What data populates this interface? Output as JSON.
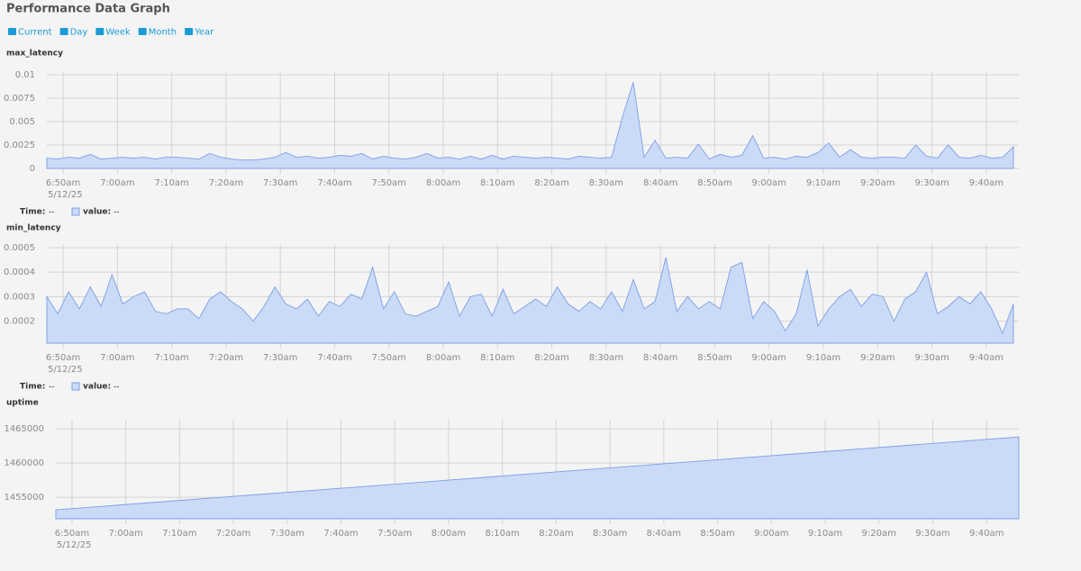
{
  "title": "Performance Data Graph",
  "buttons": [
    "Current",
    "Day",
    "Week",
    "Month",
    "Year"
  ],
  "chart_data": [
    {
      "type": "area",
      "title": "max_latency",
      "color": "#7aa0e8",
      "fill": "#cbdaf6",
      "grid": true,
      "date": "5/12/25",
      "legend": {
        "time_label": "Time:",
        "time_value": "--",
        "value_label": "value:",
        "value_value": "--"
      },
      "x": [
        407,
        409,
        411,
        413,
        415,
        417,
        419,
        421,
        423,
        425,
        427,
        429,
        431,
        433,
        435,
        437,
        439,
        441,
        443,
        445,
        447,
        449,
        451,
        453,
        455,
        457,
        459,
        461,
        463,
        465,
        467,
        469,
        471,
        473,
        475,
        477,
        479,
        481,
        483,
        485,
        487,
        489,
        491,
        493,
        495,
        497,
        499,
        501,
        503,
        505,
        507,
        509,
        511,
        513,
        515,
        517,
        519,
        521,
        523,
        525,
        527,
        529,
        531,
        533,
        535,
        537,
        539,
        541,
        543,
        545,
        547,
        549,
        551,
        553,
        555,
        557,
        559,
        561,
        563,
        565,
        567,
        569,
        571,
        573,
        575,
        577,
        579,
        581,
        583,
        585
      ],
      "values": [
        0.0011,
        0.001,
        0.0012,
        0.0011,
        0.0015,
        0.001,
        0.0011,
        0.0012,
        0.0011,
        0.0012,
        0.001,
        0.0012,
        0.0012,
        0.0011,
        0.001,
        0.0016,
        0.0012,
        0.001,
        0.0009,
        0.0009,
        0.001,
        0.0012,
        0.0017,
        0.0012,
        0.0013,
        0.0011,
        0.0012,
        0.0014,
        0.0013,
        0.0016,
        0.001,
        0.0013,
        0.0011,
        0.001,
        0.0012,
        0.0016,
        0.0011,
        0.0012,
        0.001,
        0.0013,
        0.001,
        0.0014,
        0.001,
        0.0013,
        0.0012,
        0.0011,
        0.0012,
        0.0011,
        0.001,
        0.0013,
        0.0012,
        0.0011,
        0.0012,
        0.0055,
        0.0092,
        0.0012,
        0.003,
        0.0011,
        0.0012,
        0.0011,
        0.0026,
        0.001,
        0.0015,
        0.0012,
        0.0014,
        0.0035,
        0.0011,
        0.0012,
        0.001,
        0.0013,
        0.0012,
        0.0017,
        0.0027,
        0.0012,
        0.002,
        0.0012,
        0.0011,
        0.0012,
        0.0012,
        0.0011,
        0.0025,
        0.0013,
        0.0011,
        0.0025,
        0.0012,
        0.0011,
        0.0014,
        0.0011,
        0.0012,
        0.0023
      ],
      "xlim": [
        407,
        586
      ],
      "xticks": [
        {
          "value": 410,
          "label": "6:50am"
        },
        {
          "value": 420,
          "label": "7:00am"
        },
        {
          "value": 430,
          "label": "7:10am"
        },
        {
          "value": 440,
          "label": "7:20am"
        },
        {
          "value": 450,
          "label": "7:30am"
        },
        {
          "value": 460,
          "label": "7:40am"
        },
        {
          "value": 470,
          "label": "7:50am"
        },
        {
          "value": 480,
          "label": "8:00am"
        },
        {
          "value": 490,
          "label": "8:10am"
        },
        {
          "value": 500,
          "label": "8:20am"
        },
        {
          "value": 510,
          "label": "8:30am"
        },
        {
          "value": 520,
          "label": "8:40am"
        },
        {
          "value": 530,
          "label": "8:50am"
        },
        {
          "value": 540,
          "label": "9:00am"
        },
        {
          "value": 550,
          "label": "9:10am"
        },
        {
          "value": 560,
          "label": "9:20am"
        },
        {
          "value": 570,
          "label": "9:30am"
        },
        {
          "value": 580,
          "label": "9:40am"
        }
      ],
      "ylim": [
        0,
        0.01
      ],
      "yticks": [
        0,
        0.0025,
        0.005,
        0.0075,
        0.01
      ]
    },
    {
      "type": "area",
      "title": "min_latency",
      "color": "#7aa0e8",
      "fill": "#cbdaf6",
      "grid": true,
      "date": "5/12/25",
      "legend": {
        "time_label": "Time:",
        "time_value": "--",
        "value_label": "value:",
        "value_value": "--"
      },
      "x": [
        407,
        409,
        411,
        413,
        415,
        417,
        419,
        421,
        423,
        425,
        427,
        429,
        431,
        433,
        435,
        437,
        439,
        441,
        443,
        445,
        447,
        449,
        451,
        453,
        455,
        457,
        459,
        461,
        463,
        465,
        467,
        469,
        471,
        473,
        475,
        477,
        479,
        481,
        483,
        485,
        487,
        489,
        491,
        493,
        495,
        497,
        499,
        501,
        503,
        505,
        507,
        509,
        511,
        513,
        515,
        517,
        519,
        521,
        523,
        525,
        527,
        529,
        531,
        533,
        535,
        537,
        539,
        541,
        543,
        545,
        547,
        549,
        551,
        553,
        555,
        557,
        559,
        561,
        563,
        565,
        567,
        569,
        571,
        573,
        575,
        577,
        579,
        581,
        583,
        585
      ],
      "values": [
        0.0003,
        0.00023,
        0.00032,
        0.00025,
        0.00034,
        0.00026,
        0.00039,
        0.00027,
        0.0003,
        0.00032,
        0.00024,
        0.00023,
        0.00025,
        0.00025,
        0.00021,
        0.00029,
        0.00032,
        0.00028,
        0.00025,
        0.0002,
        0.00026,
        0.00034,
        0.00027,
        0.00025,
        0.00029,
        0.00022,
        0.00028,
        0.00026,
        0.00031,
        0.00029,
        0.00042,
        0.00025,
        0.00032,
        0.00023,
        0.00022,
        0.00024,
        0.00026,
        0.00036,
        0.00022,
        0.0003,
        0.00031,
        0.00022,
        0.00033,
        0.00023,
        0.00026,
        0.00029,
        0.00026,
        0.00034,
        0.00027,
        0.00024,
        0.00028,
        0.00025,
        0.00032,
        0.00024,
        0.00037,
        0.00025,
        0.00028,
        0.00046,
        0.00024,
        0.0003,
        0.00025,
        0.00028,
        0.00025,
        0.00042,
        0.00044,
        0.00021,
        0.00028,
        0.00024,
        0.00016,
        0.00023,
        0.00041,
        0.00018,
        0.00025,
        0.0003,
        0.00033,
        0.00026,
        0.00031,
        0.0003,
        0.0002,
        0.00029,
        0.00032,
        0.0004,
        0.00023,
        0.00026,
        0.0003,
        0.00027,
        0.00032,
        0.00025,
        0.00015,
        0.00027
      ],
      "xlim": [
        407,
        586
      ],
      "xticks": [
        {
          "value": 410,
          "label": "6:50am"
        },
        {
          "value": 420,
          "label": "7:00am"
        },
        {
          "value": 430,
          "label": "7:10am"
        },
        {
          "value": 440,
          "label": "7:20am"
        },
        {
          "value": 450,
          "label": "7:30am"
        },
        {
          "value": 460,
          "label": "7:40am"
        },
        {
          "value": 470,
          "label": "7:50am"
        },
        {
          "value": 480,
          "label": "8:00am"
        },
        {
          "value": 490,
          "label": "8:10am"
        },
        {
          "value": 500,
          "label": "8:20am"
        },
        {
          "value": 510,
          "label": "8:30am"
        },
        {
          "value": 520,
          "label": "8:40am"
        },
        {
          "value": 530,
          "label": "8:50am"
        },
        {
          "value": 540,
          "label": "9:00am"
        },
        {
          "value": 550,
          "label": "9:10am"
        },
        {
          "value": 560,
          "label": "9:20am"
        },
        {
          "value": 570,
          "label": "9:30am"
        },
        {
          "value": 580,
          "label": "9:40am"
        }
      ],
      "ylim": [
        0.00011,
        0.0005
      ],
      "yticks": [
        0.0002,
        0.0003,
        0.0004,
        0.0005
      ]
    },
    {
      "type": "area",
      "title": "uptime",
      "color": "#7aa0e8",
      "fill": "#cbdaf6",
      "grid": true,
      "date": "5/12/25",
      "x": [
        407,
        417,
        427,
        437,
        447,
        457,
        467,
        477,
        487,
        497,
        507,
        517,
        527,
        537,
        547,
        557,
        567,
        577,
        586
      ],
      "values": [
        1453160,
        1453755,
        1454350,
        1454945,
        1455540,
        1456135,
        1456730,
        1457325,
        1457920,
        1458515,
        1459110,
        1459705,
        1460300,
        1460895,
        1461490,
        1462085,
        1462680,
        1463275,
        1463810
      ],
      "xlim": [
        407,
        586
      ],
      "xticks": [
        {
          "value": 410,
          "label": "6:50am"
        },
        {
          "value": 420,
          "label": "7:00am"
        },
        {
          "value": 430,
          "label": "7:10am"
        },
        {
          "value": 440,
          "label": "7:20am"
        },
        {
          "value": 450,
          "label": "7:30am"
        },
        {
          "value": 460,
          "label": "7:40am"
        },
        {
          "value": 470,
          "label": "7:50am"
        },
        {
          "value": 480,
          "label": "8:00am"
        },
        {
          "value": 490,
          "label": "8:10am"
        },
        {
          "value": 500,
          "label": "8:20am"
        },
        {
          "value": 510,
          "label": "8:30am"
        },
        {
          "value": 520,
          "label": "8:40am"
        },
        {
          "value": 530,
          "label": "8:50am"
        },
        {
          "value": 540,
          "label": "9:00am"
        },
        {
          "value": 550,
          "label": "9:10am"
        },
        {
          "value": 560,
          "label": "9:20am"
        },
        {
          "value": 570,
          "label": "9:30am"
        },
        {
          "value": 580,
          "label": "9:40am"
        }
      ],
      "ylim": [
        1451850,
        1465800
      ],
      "yticks": [
        1455000,
        1460000,
        1465000
      ]
    }
  ]
}
